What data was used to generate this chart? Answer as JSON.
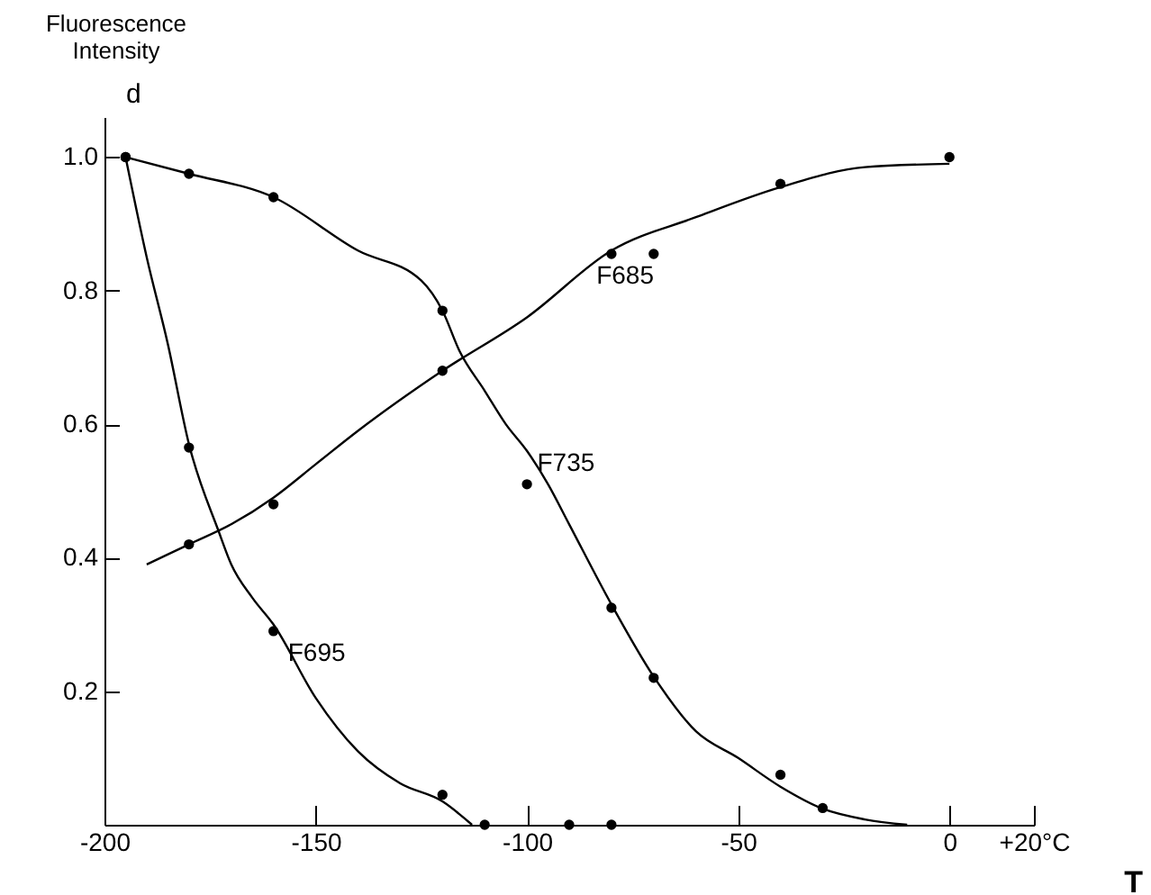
{
  "chart_data": {
    "type": "scatter",
    "xlabel": "T",
    "ylabel": "Fluorescence Intensity",
    "xlim": [
      -200,
      20
    ],
    "ylim": [
      0,
      1.06
    ],
    "xticks": [
      -200,
      -150,
      -100,
      -50,
      0,
      {
        "value": 20,
        "label": "+20°C"
      }
    ],
    "yticks": [
      0.2,
      0.4,
      0.6,
      0.8,
      {
        "value": 1.0,
        "label": "1.0"
      }
    ],
    "marker": "circle",
    "series": [
      {
        "color": "#000000",
        "x": [
          -195,
          -180,
          -160,
          -120,
          -100,
          -80,
          -70,
          -40,
          -30
        ],
        "values": [
          1.0,
          0.975,
          0.94,
          0.77,
          0.51,
          0.325,
          0.22,
          0.075,
          0.025
        ]
      },
      {
        "type": "line",
        "marker": "none",
        "color": "#000000",
        "x": [
          -195,
          -180,
          -160,
          -140,
          -125,
          -120,
          -116,
          -110,
          -105,
          -100,
          -95,
          -90,
          -80,
          -70,
          -60,
          -50,
          -40,
          -30,
          -20,
          -10
        ],
        "values": [
          1.0,
          0.975,
          0.94,
          0.86,
          0.815,
          0.77,
          0.71,
          0.65,
          0.6,
          0.56,
          0.51,
          0.45,
          0.33,
          0.222,
          0.14,
          0.1,
          0.057,
          0.024,
          0.008,
          0.0
        ]
      },
      {
        "color": "#000000",
        "x": [
          -180,
          -160,
          -120,
          -80,
          -70,
          -40,
          0
        ],
        "values": [
          0.42,
          0.48,
          0.68,
          0.855,
          0.855,
          0.96,
          1.0
        ]
      },
      {
        "type": "line",
        "marker": "none",
        "color": "#000000",
        "x": [
          -190,
          -180,
          -170,
          -160,
          -150,
          -140,
          -120,
          -100,
          -80,
          -60,
          -40,
          -20,
          0
        ],
        "values": [
          0.39,
          0.42,
          0.45,
          0.49,
          0.54,
          0.59,
          0.68,
          0.76,
          0.86,
          0.91,
          0.955,
          0.985,
          0.99
        ]
      },
      {
        "color": "#000000",
        "x": [
          -195,
          -180,
          -160,
          -120,
          -110,
          -90,
          -80
        ],
        "values": [
          1.0,
          0.565,
          0.29,
          0.045,
          0.0,
          0.0,
          0.0
        ]
      },
      {
        "type": "line",
        "marker": "none",
        "color": "#000000",
        "x": [
          -195,
          -190,
          -185,
          -180,
          -173,
          -170,
          -165,
          -160,
          -150,
          -140,
          -130,
          -120,
          -113
        ],
        "values": [
          1.0,
          0.85,
          0.72,
          0.57,
          0.44,
          0.39,
          0.34,
          0.3,
          0.19,
          0.11,
          0.062,
          0.035,
          0.0
        ]
      }
    ],
    "annotations": [
      "d",
      {
        "text": "F685",
        "x": -84,
        "y": 0.845
      },
      {
        "text": "F735",
        "x": -98,
        "y": 0.565
      },
      {
        "text": "F695",
        "x": -157,
        "y": 0.28
      }
    ]
  }
}
